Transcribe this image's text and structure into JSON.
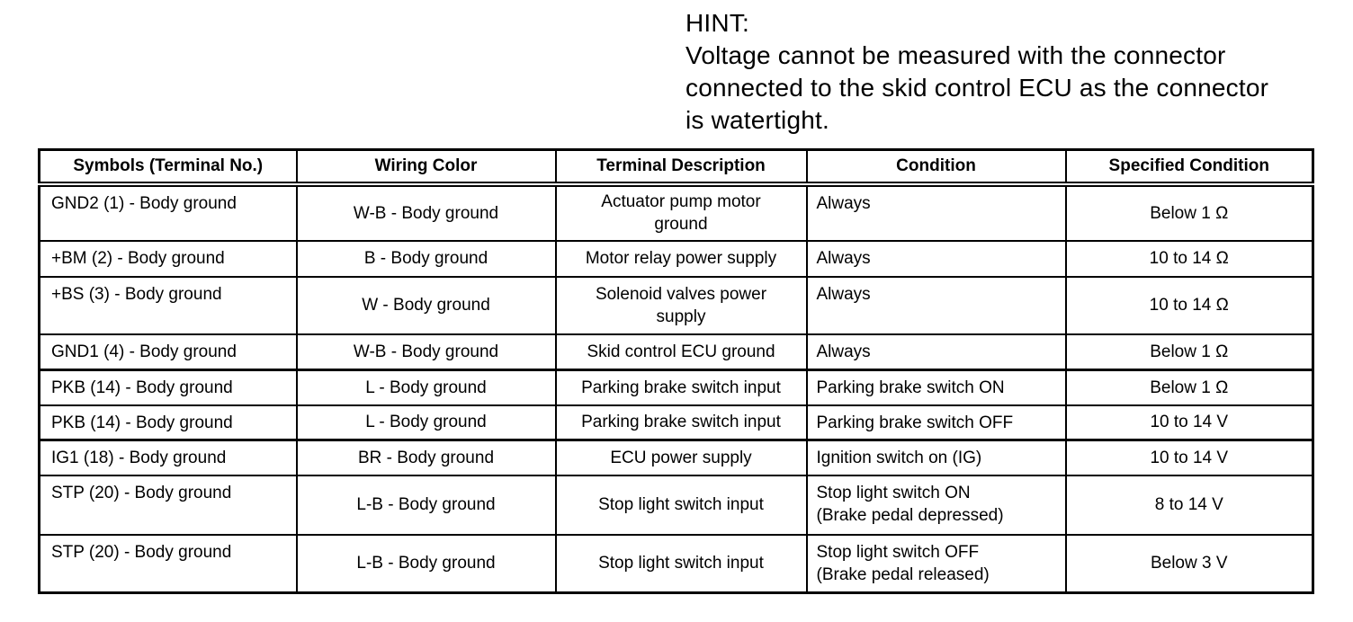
{
  "hint": {
    "label": "HINT:",
    "lines": [
      "Voltage cannot be measured with the connector",
      "connected to the skid control ECU as the connector",
      "is watertight."
    ]
  },
  "table": {
    "columns": {
      "symbols": "Symbols (Terminal No.)",
      "wiring": "Wiring Color",
      "description": "Terminal Description",
      "condition": "Condition",
      "specified": "Specified Condition"
    },
    "rows": [
      {
        "symbol": "GND2 (1) - Body ground",
        "wiring": "W-B - Body ground",
        "description": "Actuator pump motor\nground",
        "condition": "Always",
        "specified": "Below 1 Ω"
      },
      {
        "symbol": "+BM (2) - Body ground",
        "wiring": "B - Body ground",
        "description": "Motor relay power supply",
        "condition": "Always",
        "specified": "10 to 14 Ω"
      },
      {
        "symbol": "+BS (3) - Body ground",
        "wiring": "W - Body ground",
        "description": "Solenoid valves power\nsupply",
        "condition": "Always",
        "specified": "10 to 14 Ω"
      },
      {
        "symbol": "GND1 (4) - Body ground",
        "wiring": "W-B - Body ground",
        "description": "Skid control ECU ground",
        "condition": "Always",
        "specified": "Below 1 Ω"
      },
      {
        "symbol": "PKB (14) - Body ground",
        "wiring": "L - Body ground",
        "description": "Parking brake switch input",
        "condition": "Parking brake switch ON",
        "specified": "Below 1 Ω"
      },
      {
        "symbol": "PKB (14) - Body ground",
        "wiring": "L - Body ground",
        "description": "Parking brake switch input",
        "condition": "Parking brake switch OFF",
        "specified": "10 to 14 V"
      },
      {
        "symbol": "IG1 (18) - Body ground",
        "wiring": "BR - Body ground",
        "description": "ECU power supply",
        "condition": "Ignition switch on (IG)",
        "specified": "10 to 14 V"
      },
      {
        "symbol": "STP (20) - Body ground",
        "wiring": "L-B - Body ground",
        "description": "Stop light switch input",
        "condition": "Stop light switch ON\n(Brake pedal depressed)",
        "specified": "8 to 14 V"
      },
      {
        "symbol": "STP (20) - Body ground",
        "wiring": "L-B - Body ground",
        "description": "Stop light switch input",
        "condition": "Stop light switch OFF\n(Brake pedal released)",
        "specified": "Below 3 V"
      }
    ]
  }
}
